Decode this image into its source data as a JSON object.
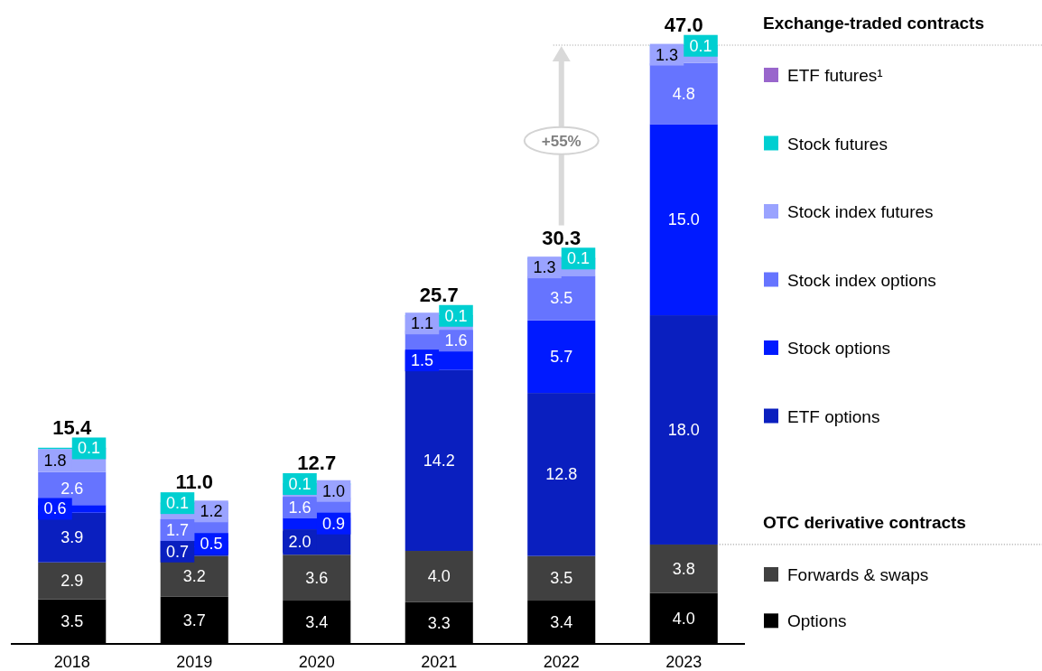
{
  "chart_data": {
    "type": "bar",
    "stacked": true,
    "legend": "right",
    "categories": [
      "2018",
      "2019",
      "2020",
      "2021",
      "2022",
      "2023"
    ],
    "series": [
      {
        "name": "Options",
        "color": "#000000",
        "values": [
          3.5,
          3.7,
          3.4,
          3.3,
          3.4,
          4.0
        ],
        "value_labels": [
          "3.5",
          "3.7",
          "3.4",
          "3.3",
          "3.4",
          "4.0"
        ]
      },
      {
        "name": "Forwards & swaps",
        "color": "#404040",
        "values": [
          2.9,
          3.2,
          3.6,
          4.0,
          3.5,
          3.8
        ],
        "value_labels": [
          "2.9",
          "3.2",
          "3.6",
          "4.0",
          "3.5",
          "3.8"
        ]
      },
      {
        "name": "ETF options",
        "color": "#0a1fbf",
        "values": [
          3.9,
          0.7,
          2.0,
          14.2,
          12.8,
          18.0
        ],
        "value_labels": [
          "3.9",
          "0.7",
          "2.0",
          "14.2",
          "12.8",
          "18.0"
        ]
      },
      {
        "name": "Stock options",
        "color": "#001aff",
        "values": [
          0.6,
          0.5,
          0.9,
          1.5,
          5.7,
          15.0
        ],
        "value_labels": [
          "0.6",
          "0.5",
          "0.9",
          "1.5",
          "5.7",
          "15.0"
        ]
      },
      {
        "name": "Stock index options",
        "color": "#6674ff",
        "values": [
          2.6,
          1.7,
          1.6,
          1.6,
          3.5,
          4.8
        ],
        "value_labels": [
          "2.6",
          "1.7",
          "1.6",
          "1.6",
          "3.5",
          "4.8"
        ]
      },
      {
        "name": "Stock index futures",
        "color": "#9aa3ff",
        "values": [
          1.8,
          1.2,
          1.0,
          1.1,
          1.3,
          1.3
        ],
        "value_labels": [
          "1.8",
          "1.2",
          "1.0",
          "1.1",
          "1.3",
          "1.3"
        ]
      },
      {
        "name": "Stock futures",
        "color": "#00cfd1",
        "values": [
          0.1,
          0.1,
          0.1,
          0.1,
          0.1,
          0.1
        ],
        "value_labels": [
          "0.1",
          "0.1",
          "0.1",
          "0.1",
          "0.1",
          "0.1"
        ]
      },
      {
        "name": "ETF futures¹",
        "color": "#9966cc",
        "values": [
          null,
          null,
          null,
          null,
          null,
          null
        ]
      }
    ],
    "totals": [
      "15.4",
      "11.0",
      "12.7",
      "25.7",
      "30.3",
      "47.0"
    ],
    "ref_lines": [
      {
        "axis": "y",
        "value": 47.0,
        "label": "Exchange-traded contracts",
        "line_style": "dotted",
        "color": "#999999"
      },
      {
        "axis": "y",
        "value": 7.8,
        "label": "OTC derivative contracts",
        "line_style": "dotted",
        "color": "#999999"
      }
    ],
    "annotations": [
      "+55%"
    ]
  }
}
